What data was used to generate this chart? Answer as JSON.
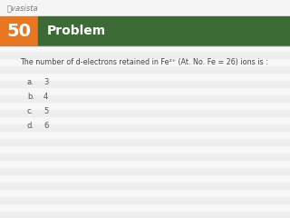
{
  "number": "50",
  "header_text": "Problem",
  "question": "The number of d-electrons retained in Fe²⁺ (At. No. Fe = 26) ions is :",
  "options": [
    {
      "label": "a.",
      "value": "3"
    },
    {
      "label": "b.",
      "value": "4"
    },
    {
      "label": "c.",
      "value": "5"
    },
    {
      "label": "d.",
      "value": "6"
    }
  ],
  "number_bg_color": "#E87722",
  "header_bg_color": "#3D6B35",
  "header_text_color": "#FFFFFF",
  "number_text_color": "#FFFFFF",
  "question_text_color": "#444444",
  "options_text_color": "#555555",
  "background_color": "#F2F2F2",
  "stripe_even": "#EEEEEE",
  "stripe_odd": "#F7F7F7",
  "logo_text": "ⓘvasista",
  "logo_color": "#777777"
}
